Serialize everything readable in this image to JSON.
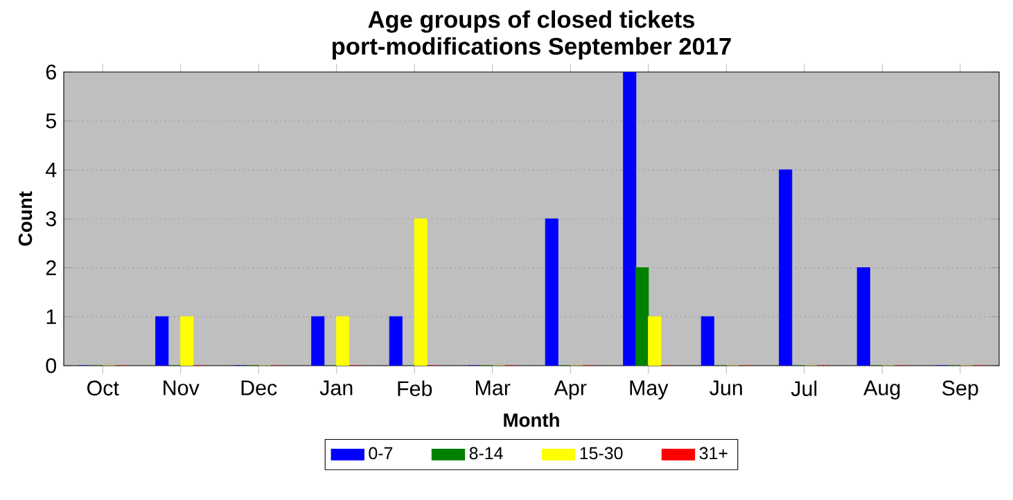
{
  "chart_data": {
    "type": "bar",
    "title": "Age groups of closed tickets\nport-modifications September 2017",
    "xlabel": "Month",
    "ylabel": "Count",
    "categories": [
      "Oct",
      "Nov",
      "Dec",
      "Jan",
      "Feb",
      "Mar",
      "Apr",
      "May",
      "Jun",
      "Jul",
      "Aug",
      "Sep"
    ],
    "series": [
      {
        "name": "0-7",
        "color": "#0000ff",
        "values": [
          0,
          1,
          0,
          1,
          1,
          0,
          3,
          6,
          1,
          4,
          2,
          0
        ]
      },
      {
        "name": "8-14",
        "color": "#008000",
        "values": [
          0,
          0,
          0,
          0,
          0,
          0,
          0,
          2,
          0,
          0,
          0,
          0
        ]
      },
      {
        "name": "15-30",
        "color": "#ffff00",
        "values": [
          0,
          1,
          0,
          1,
          3,
          0,
          0,
          1,
          0,
          0,
          0,
          0
        ]
      },
      {
        "name": "31+",
        "color": "#ff0000",
        "values": [
          0,
          0,
          0,
          0,
          0,
          0,
          0,
          0,
          0,
          0,
          0,
          0
        ]
      }
    ],
    "ylim": [
      0,
      6
    ],
    "yticks": [
      0,
      1,
      2,
      3,
      4,
      5,
      6
    ],
    "grid": "y",
    "legend": "bottom"
  }
}
